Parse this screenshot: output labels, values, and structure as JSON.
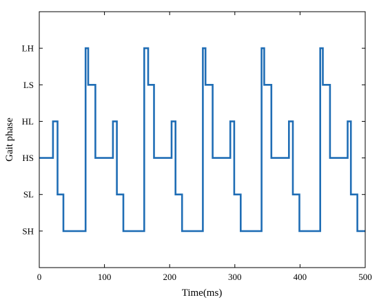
{
  "chart_data": {
    "type": "line",
    "title": "",
    "xlabel": "Time(ms)",
    "ylabel": "Gait phase",
    "xlim": [
      0,
      500
    ],
    "xticks": [
      0,
      100,
      200,
      300,
      400,
      500
    ],
    "xtick_labels": [
      "0",
      "100",
      "200",
      "300",
      "400",
      "500"
    ],
    "ylim": [
      0,
      7
    ],
    "yticks": [
      1,
      2,
      3,
      4,
      5,
      6
    ],
    "ytick_labels": [
      "SH",
      "SL",
      "HS",
      "HL",
      "LS",
      "LH"
    ],
    "grid": false,
    "legend": "none",
    "line_color": "#1f6db5",
    "series": [
      {
        "points": [
          [
            0,
            3
          ],
          [
            21,
            3
          ],
          [
            21,
            4
          ],
          [
            28,
            4
          ],
          [
            28,
            2
          ],
          [
            37,
            2
          ],
          [
            37,
            1
          ],
          [
            71,
            1
          ],
          [
            71,
            6
          ],
          [
            75,
            6
          ],
          [
            75,
            5
          ],
          [
            86,
            5
          ],
          [
            86,
            3
          ],
          [
            113,
            3
          ],
          [
            113,
            4
          ],
          [
            119,
            4
          ],
          [
            119,
            2
          ],
          [
            129,
            2
          ],
          [
            129,
            1
          ],
          [
            161,
            1
          ],
          [
            161,
            6
          ],
          [
            167,
            6
          ],
          [
            167,
            5
          ],
          [
            176,
            5
          ],
          [
            176,
            3
          ],
          [
            203,
            3
          ],
          [
            203,
            4
          ],
          [
            209,
            4
          ],
          [
            209,
            2
          ],
          [
            219,
            2
          ],
          [
            219,
            1
          ],
          [
            251,
            1
          ],
          [
            251,
            6
          ],
          [
            255,
            6
          ],
          [
            255,
            5
          ],
          [
            266,
            5
          ],
          [
            266,
            3
          ],
          [
            293,
            3
          ],
          [
            293,
            4
          ],
          [
            299,
            4
          ],
          [
            299,
            2
          ],
          [
            309,
            2
          ],
          [
            309,
            1
          ],
          [
            341,
            1
          ],
          [
            341,
            6
          ],
          [
            345,
            6
          ],
          [
            345,
            5
          ],
          [
            356,
            5
          ],
          [
            356,
            3
          ],
          [
            383,
            3
          ],
          [
            383,
            4
          ],
          [
            389,
            4
          ],
          [
            389,
            2
          ],
          [
            399,
            2
          ],
          [
            399,
            1
          ],
          [
            431,
            1
          ],
          [
            431,
            6
          ],
          [
            435,
            6
          ],
          [
            435,
            5
          ],
          [
            446,
            5
          ],
          [
            446,
            3
          ],
          [
            473,
            3
          ],
          [
            473,
            4
          ],
          [
            478,
            4
          ],
          [
            478,
            2
          ],
          [
            488,
            2
          ],
          [
            488,
            1
          ],
          [
            500,
            1
          ]
        ]
      }
    ]
  }
}
